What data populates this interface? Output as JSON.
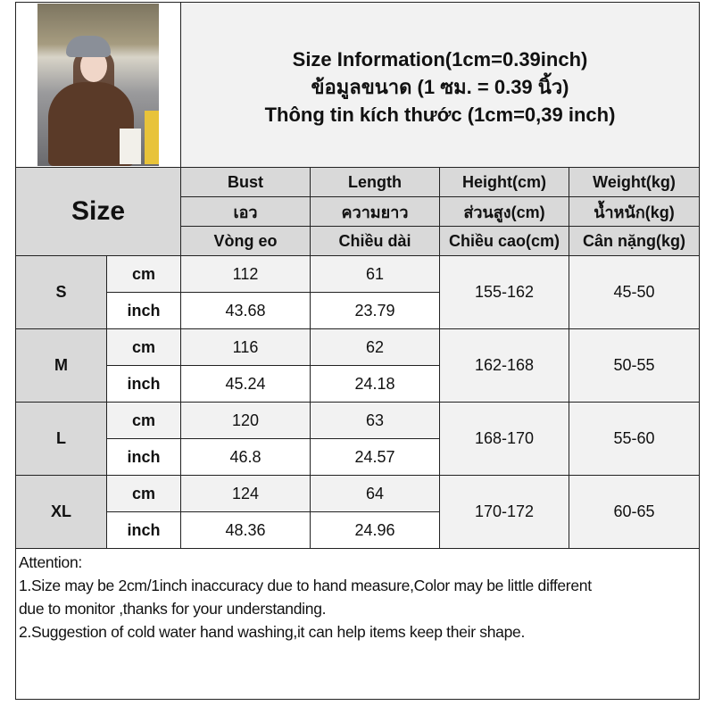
{
  "title_lines": [
    "Size Information(1cm=0.39inch)",
    "ข้อมูลขนาด (1 ซม. = 0.39 นิ้ว)",
    "Thông tin kích thước (1cm=0,39 inch)"
  ],
  "size_header": "Size",
  "columns": [
    [
      "Bust",
      "เอว",
      "Vòng eo"
    ],
    [
      "Length",
      "ความยาว",
      "Chiều dài"
    ],
    [
      "Height(cm)",
      "ส่วนสูง(cm)",
      "Chiều cao(cm)"
    ],
    [
      "Weight(kg)",
      "น้ำหนัก(kg)",
      "Cân nặng(kg)"
    ]
  ],
  "units": {
    "cm": "cm",
    "inch": "inch"
  },
  "sizes": [
    {
      "size": "S",
      "cm": [
        "112",
        "61"
      ],
      "inch": [
        "43.68",
        "23.79"
      ],
      "height": "155-162",
      "weight": "45-50"
    },
    {
      "size": "M",
      "cm": [
        "116",
        "62"
      ],
      "inch": [
        "45.24",
        "24.18"
      ],
      "height": "162-168",
      "weight": "50-55"
    },
    {
      "size": "L",
      "cm": [
        "120",
        "63"
      ],
      "inch": [
        "46.8",
        "24.57"
      ],
      "height": "168-170",
      "weight": "55-60"
    },
    {
      "size": "XL",
      "cm": [
        "124",
        "64"
      ],
      "inch": [
        "48.36",
        "24.96"
      ],
      "height": "170-172",
      "weight": "60-65"
    }
  ],
  "attention": [
    "Attention:",
    "1.Size may be 2cm/1inch inaccuracy due to hand measure,Color may be little different",
    "due to monitor ,thanks for your understanding.",
    "2.Suggestion of cold water hand washing,it can help items keep their shape."
  ],
  "colors": {
    "header_bg": "#d9d9d9",
    "light_bg": "#f2f2f2",
    "border": "#222222"
  }
}
